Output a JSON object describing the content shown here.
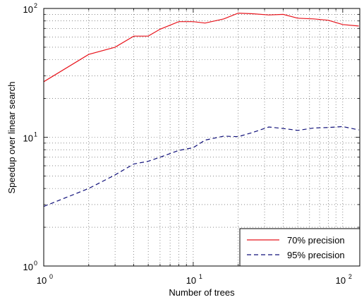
{
  "chart_data": {
    "type": "line",
    "title": "",
    "xlabel": "Number of trees",
    "ylabel": "Speedup over linear search",
    "xscale": "log",
    "yscale": "log",
    "xlim": [
      1,
      130
    ],
    "ylim": [
      1,
      100
    ],
    "x_ticks": [
      {
        "base": "10",
        "exp": "0"
      },
      {
        "base": "10",
        "exp": "1"
      },
      {
        "base": "10",
        "exp": "2"
      }
    ],
    "y_ticks": [
      {
        "base": "10",
        "exp": "0"
      },
      {
        "base": "10",
        "exp": "1"
      },
      {
        "base": "10",
        "exp": "2"
      }
    ],
    "grid": true,
    "legend_position": "bottom-right",
    "series": [
      {
        "name": "70% precision",
        "color": "#e8141c",
        "line_style": "solid",
        "x": [
          1,
          2,
          3,
          4,
          5,
          6,
          8,
          10,
          12,
          16,
          20,
          25,
          32,
          40,
          50,
          64,
          80,
          100,
          128
        ],
        "y": [
          27,
          44,
          50,
          61,
          61,
          69,
          79,
          79,
          77,
          83,
          92,
          91,
          89,
          90,
          84,
          83,
          81,
          75,
          73
        ]
      },
      {
        "name": "95% precision",
        "color": "#10107a",
        "line_style": "dashed",
        "x": [
          1,
          2,
          3,
          4,
          5,
          6,
          8,
          10,
          12,
          16,
          20,
          25,
          32,
          40,
          50,
          64,
          80,
          100,
          128
        ],
        "y": [
          2.9,
          4.0,
          5.1,
          6.2,
          6.5,
          7.0,
          7.9,
          8.3,
          9.5,
          10.2,
          10.1,
          10.9,
          12.0,
          11.7,
          11.3,
          11.8,
          11.9,
          12.1,
          11.4
        ]
      }
    ]
  }
}
